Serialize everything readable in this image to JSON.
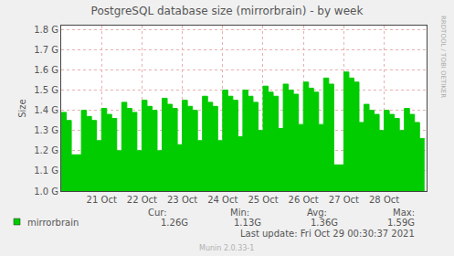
{
  "chart_data": {
    "type": "area",
    "title": "PostgreSQL database size (mirrorbrain) - by week",
    "y_label": "Size",
    "x": [
      20,
      20.125,
      20.25,
      20.375,
      20.5,
      20.625,
      20.75,
      20.875,
      21,
      21.125,
      21.25,
      21.375,
      21.5,
      21.625,
      21.75,
      21.875,
      22,
      22.125,
      22.25,
      22.375,
      22.5,
      22.625,
      22.75,
      22.875,
      23,
      23.125,
      23.25,
      23.375,
      23.5,
      23.625,
      23.75,
      23.875,
      24,
      24.125,
      24.25,
      24.375,
      24.5,
      24.625,
      24.75,
      24.875,
      25,
      25.125,
      25.25,
      25.375,
      25.5,
      25.625,
      25.75,
      25.875,
      26,
      26.125,
      26.25,
      26.375,
      26.5,
      26.625,
      26.75,
      26.875,
      27,
      27.125,
      27.25,
      27.375,
      27.5,
      27.625,
      27.75,
      27.875,
      28,
      28.125,
      28.25,
      28.375,
      28.5,
      28.625,
      28.75,
      28.875,
      29
    ],
    "series": [
      {
        "name": "mirrorbrain",
        "color": "#00cc00",
        "line_style": "step",
        "values": [
          1.39,
          1.35,
          1.18,
          1.18,
          1.4,
          1.37,
          1.35,
          1.25,
          1.41,
          1.38,
          1.36,
          1.2,
          1.44,
          1.41,
          1.39,
          1.2,
          1.45,
          1.42,
          1.4,
          1.2,
          1.46,
          1.43,
          1.41,
          1.23,
          1.45,
          1.42,
          1.4,
          1.25,
          1.47,
          1.44,
          1.42,
          1.25,
          1.5,
          1.47,
          1.45,
          1.27,
          1.5,
          1.47,
          1.44,
          1.3,
          1.52,
          1.49,
          1.47,
          1.31,
          1.53,
          1.5,
          1.48,
          1.33,
          1.54,
          1.51,
          1.49,
          1.33,
          1.56,
          1.53,
          1.13,
          1.13,
          1.59,
          1.56,
          1.54,
          1.34,
          1.43,
          1.4,
          1.38,
          1.3,
          1.4,
          1.38,
          1.36,
          1.3,
          1.41,
          1.38,
          1.34,
          1.26,
          1.26
        ],
        "stats": [
          {
            "label": "Cur:",
            "value": 1.26,
            "text": "1.26G"
          },
          {
            "label": "Min:",
            "value": 1.13,
            "text": "1.13G"
          },
          {
            "label": "Avg:",
            "value": 1.36,
            "text": "1.36G"
          },
          {
            "label": "Max:",
            "value": 1.59,
            "text": "1.59G"
          }
        ]
      }
    ],
    "xlim": [
      20,
      29.05
    ],
    "xticks": [
      {
        "value": 21,
        "label": "21 Oct"
      },
      {
        "value": 22,
        "label": "22 Oct"
      },
      {
        "value": 23,
        "label": "23 Oct"
      },
      {
        "value": 24,
        "label": "24 Oct"
      },
      {
        "value": 25,
        "label": "25 Oct"
      },
      {
        "value": 26,
        "label": "26 Oct"
      },
      {
        "value": 27,
        "label": "27 Oct"
      },
      {
        "value": 28,
        "label": "28 Oct"
      }
    ],
    "ylim": [
      1.0,
      1.82
    ],
    "yticks": [
      {
        "value": 1.0,
        "label": "1.0 G"
      },
      {
        "value": 1.1,
        "label": "1.1 G"
      },
      {
        "value": 1.2,
        "label": "1.2 G"
      },
      {
        "value": 1.3,
        "label": "1.3 G"
      },
      {
        "value": 1.4,
        "label": "1.4 G"
      },
      {
        "value": 1.5,
        "label": "1.5 G"
      },
      {
        "value": 1.6,
        "label": "1.6 G"
      },
      {
        "value": 1.7,
        "label": "1.7 G"
      },
      {
        "value": 1.8,
        "label": "1.8 G"
      }
    ],
    "grid": true,
    "footer": "Last update: Fri Oct 29 00:30:37 2021",
    "credit": "Munin 2.0.33-1",
    "watermark": "RRDTOOL / TOBI OETIKER"
  }
}
